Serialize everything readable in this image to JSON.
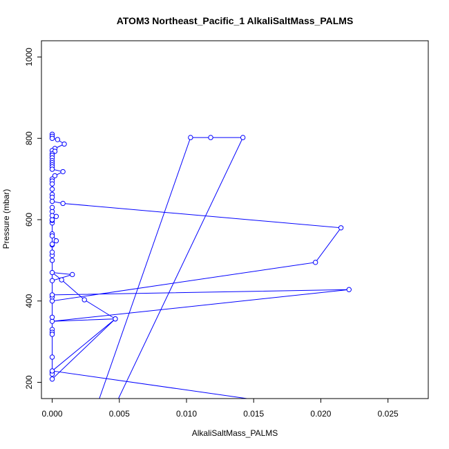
{
  "chart_data": {
    "type": "line",
    "title": "ATOM3 Northeast_Pacific_1 AlkaliSaltMass_PALMS",
    "xlabel": "AlkaliSaltMass_PALMS",
    "ylabel": "Pressure (mbar)",
    "xlim": [
      -0.0008,
      0.028
    ],
    "ylim": [
      1040,
      160
    ],
    "y_inverted": true,
    "x_ticks": [
      0.0,
      0.005,
      0.01,
      0.015,
      0.02,
      0.025
    ],
    "x_tick_labels": [
      "0.000",
      "0.005",
      "0.010",
      "0.015",
      "0.020",
      "0.025"
    ],
    "y_ticks": [
      200,
      400,
      600,
      800,
      1000
    ],
    "y_tick_labels": [
      "200",
      "400",
      "600",
      "800",
      "1000"
    ],
    "grid": false,
    "legend": "none",
    "series": [
      {
        "color": "#0000ff",
        "markers": "open-circle",
        "points": [
          [
            0,
            810
          ],
          [
            0,
            805
          ],
          [
            0,
            800
          ],
          [
            0.0004,
            797
          ],
          [
            0.0009,
            786
          ],
          [
            0.0002,
            775
          ],
          [
            0,
            770
          ],
          [
            0.0002,
            768
          ],
          [
            0,
            762
          ],
          [
            0,
            758
          ],
          [
            0,
            752
          ],
          [
            0,
            745
          ],
          [
            0,
            740
          ],
          [
            0,
            735
          ],
          [
            0,
            730
          ],
          [
            0,
            724
          ],
          [
            0.0008,
            718
          ],
          [
            0.0002,
            708
          ],
          [
            0,
            700
          ],
          [
            0,
            695
          ],
          [
            0,
            688
          ],
          [
            0,
            675
          ],
          [
            0,
            662
          ],
          [
            0,
            655
          ],
          [
            0,
            645
          ],
          [
            0.0008,
            640
          ],
          [
            0.0215,
            580
          ],
          [
            0.0196,
            495
          ],
          [
            0,
            400
          ],
          [
            0,
            410
          ],
          [
            0,
            415
          ],
          [
            0.0221,
            428
          ],
          [
            0,
            350
          ],
          [
            0.0047,
            356
          ],
          [
            0.0024,
            403
          ],
          [
            0.0007,
            452
          ],
          [
            0,
            470
          ],
          [
            0.0015,
            465
          ],
          [
            0,
            450
          ],
          [
            0,
            500
          ],
          [
            0,
            512
          ],
          [
            0,
            538
          ],
          [
            0.0003,
            548
          ],
          [
            0,
            565
          ],
          [
            0,
            592
          ],
          [
            0,
            598
          ],
          [
            0.0003,
            608
          ],
          [
            0,
            600
          ],
          [
            0,
            620
          ],
          [
            0,
            630
          ],
          [
            0,
            610
          ],
          [
            0,
            560
          ],
          [
            0,
            540
          ],
          [
            0,
            520
          ],
          [
            0,
            360
          ],
          [
            0,
            330
          ],
          [
            0,
            323
          ],
          [
            0,
            318
          ],
          [
            0,
            262
          ],
          [
            0,
            225
          ],
          [
            0,
            220
          ],
          [
            0,
            208
          ],
          [
            0.0047,
            356
          ],
          [
            0,
            228
          ],
          [
            0.016,
            153
          ],
          [
            0.0045,
            130
          ],
          [
            0.0142,
            802
          ],
          [
            0.0118,
            802
          ],
          [
            0.0103,
            802
          ],
          [
            0.0033,
            140
          ]
        ]
      }
    ]
  }
}
